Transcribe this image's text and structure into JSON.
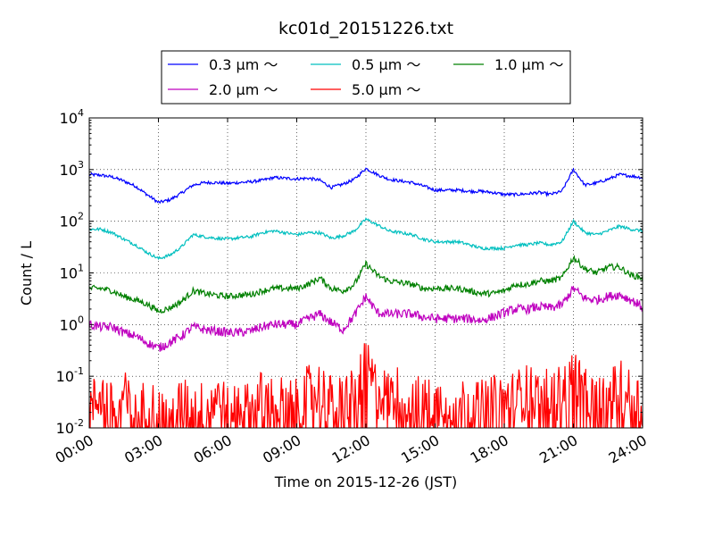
{
  "chart_data": {
    "type": "line",
    "title": "kc01d_20151226.txt",
    "xlabel": "Time on 2015-12-26 (JST)",
    "ylabel": "Count / L",
    "x_unit": "hours",
    "xlim": [
      0,
      24
    ],
    "ylim": [
      0.01,
      10000
    ],
    "y_scale": "log",
    "grid": true,
    "legend_position": "top-center",
    "x_ticks": [
      0,
      3,
      6,
      9,
      12,
      15,
      18,
      21,
      24
    ],
    "x_tick_labels": [
      "00:00",
      "03:00",
      "06:00",
      "09:00",
      "12:00",
      "15:00",
      "18:00",
      "21:00",
      "24:00"
    ],
    "y_ticks": [
      {
        "value": 0.01,
        "base": "10",
        "exp": "-2"
      },
      {
        "value": 0.1,
        "base": "10",
        "exp": "-1"
      },
      {
        "value": 1,
        "base": "10",
        "exp": "0"
      },
      {
        "value": 10,
        "base": "10",
        "exp": "1"
      },
      {
        "value": 100,
        "base": "10",
        "exp": "2"
      },
      {
        "value": 1000,
        "base": "10",
        "exp": "3"
      },
      {
        "value": 10000,
        "base": "10",
        "exp": "4"
      }
    ],
    "x": [
      0,
      0.5,
      1,
      1.5,
      2,
      2.5,
      3,
      3.5,
      4,
      4.5,
      5,
      5.5,
      6,
      6.5,
      7,
      7.5,
      8,
      8.5,
      9,
      9.5,
      10,
      10.5,
      11,
      11.5,
      12,
      12.5,
      13,
      13.5,
      14,
      14.5,
      15,
      15.5,
      16,
      16.5,
      17,
      17.5,
      18,
      18.5,
      19,
      19.5,
      20,
      20.5,
      21,
      21.5,
      22,
      22.5,
      23,
      23.5,
      24
    ],
    "series": [
      {
        "name": "0.3 μm ～",
        "color": "#0000ff",
        "values": [
          800,
          780,
          720,
          600,
          480,
          330,
          230,
          260,
          350,
          500,
          560,
          560,
          540,
          560,
          580,
          620,
          700,
          680,
          660,
          680,
          620,
          450,
          520,
          650,
          1050,
          800,
          650,
          600,
          560,
          480,
          400,
          400,
          400,
          380,
          380,
          360,
          330,
          330,
          340,
          360,
          330,
          380,
          1000,
          500,
          550,
          650,
          800,
          750,
          700
        ]
      },
      {
        "name": "0.5 μm ～",
        "color": "#00bfbf",
        "values": [
          70,
          70,
          60,
          45,
          35,
          25,
          19,
          22,
          32,
          55,
          50,
          47,
          45,
          48,
          50,
          60,
          65,
          60,
          55,
          60,
          60,
          47,
          52,
          65,
          110,
          85,
          65,
          60,
          55,
          45,
          40,
          40,
          40,
          35,
          30,
          30,
          30,
          35,
          35,
          38,
          35,
          40,
          100,
          60,
          55,
          65,
          80,
          70,
          65
        ]
      },
      {
        "name": "1.0 μm ～",
        "color": "#008000",
        "values": [
          5,
          5,
          4.5,
          3.5,
          3,
          2.5,
          1.8,
          2.1,
          2.8,
          4.5,
          4,
          3.7,
          3.5,
          3.7,
          3.8,
          4.5,
          5,
          5,
          5,
          6,
          8,
          5,
          4.5,
          6,
          15,
          9,
          7,
          6.5,
          6,
          5,
          5,
          5,
          5,
          4.5,
          4,
          4,
          4.5,
          6,
          6,
          7,
          7,
          8,
          20,
          12,
          10,
          13,
          13,
          9,
          8
        ]
      },
      {
        "name": "2.0 μm ～",
        "color": "#bf00bf",
        "values": [
          1,
          0.9,
          0.9,
          0.7,
          0.6,
          0.45,
          0.35,
          0.45,
          0.6,
          0.9,
          0.8,
          0.75,
          0.7,
          0.7,
          0.75,
          0.9,
          1,
          1,
          1,
          1.3,
          1.6,
          1.1,
          0.8,
          1.5,
          3.5,
          1.7,
          1.6,
          1.6,
          1.6,
          1.4,
          1.3,
          1.3,
          1.3,
          1.3,
          1.2,
          1.4,
          1.7,
          2,
          2,
          2.2,
          2.1,
          2.4,
          5,
          3.2,
          3,
          3.5,
          3.8,
          3,
          2.2
        ]
      },
      {
        "name": "5.0 μm ～",
        "color": "#ff0000",
        "values": [
          0.02,
          0.05,
          0.02,
          0.04,
          0.015,
          0.03,
          0.02,
          0.015,
          0.03,
          0.02,
          0.025,
          0.04,
          0.02,
          0.03,
          0.02,
          0.04,
          0.03,
          0.03,
          0.025,
          0.05,
          0.06,
          0.03,
          0.035,
          0.05,
          0.15,
          0.05,
          0.04,
          0.05,
          0.03,
          0.03,
          0.025,
          0.04,
          0.03,
          0.03,
          0.025,
          0.03,
          0.035,
          0.04,
          0.05,
          0.04,
          0.04,
          0.05,
          0.12,
          0.04,
          0.03,
          0.04,
          0.06,
          0.04,
          0.03
        ]
      }
    ]
  }
}
